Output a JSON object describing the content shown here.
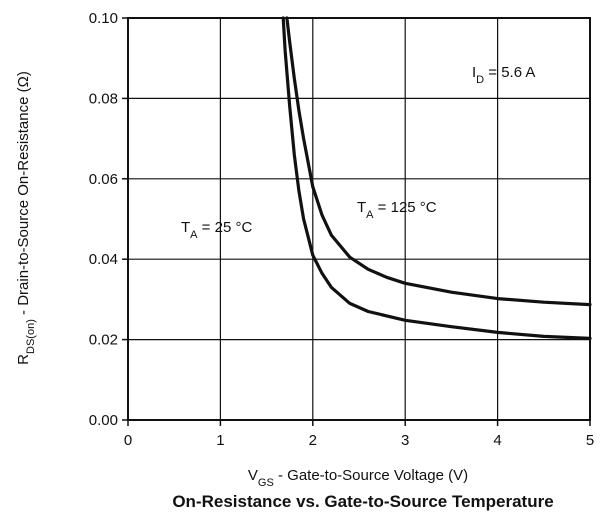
{
  "chart_data": {
    "type": "line",
    "title": "On-Resistance vs. Gate-to-Source Temperature",
    "xlabel": {
      "main": "V",
      "sub": "GS",
      "rest": " - Gate-to-Source Voltage (V)"
    },
    "ylabel": {
      "main": "R",
      "sub": "DS(on)",
      "rest": " - Drain-to-Source On-Resistance (Ω)"
    },
    "xlim": [
      0,
      5
    ],
    "ylim": [
      0.0,
      0.1
    ],
    "x_ticks": [
      "0",
      "1",
      "2",
      "3",
      "4",
      "5"
    ],
    "y_ticks": [
      "0.00",
      "0.02",
      "0.04",
      "0.06",
      "0.08",
      "0.10"
    ],
    "grid": true,
    "annotations": {
      "id": {
        "main": "I",
        "sub": "D",
        "rest": " = 5.6 A"
      },
      "t25": {
        "main": "T",
        "sub": "A",
        "rest": " = 25 °C"
      },
      "t125": {
        "main": "T",
        "sub": "A",
        "rest": " = 125 °C"
      }
    },
    "series": [
      {
        "curve": "t125",
        "x": [
          1.72,
          1.75,
          1.8,
          1.85,
          1.9,
          2.0,
          2.1,
          2.2,
          2.4,
          2.6,
          2.8,
          3.0,
          3.5,
          4.0,
          4.5,
          5.0
        ],
        "y": [
          0.1,
          0.094,
          0.085,
          0.077,
          0.07,
          0.058,
          0.051,
          0.046,
          0.0405,
          0.0375,
          0.0355,
          0.034,
          0.0318,
          0.0302,
          0.0293,
          0.0287
        ]
      },
      {
        "curve": "t25",
        "x": [
          1.68,
          1.7,
          1.75,
          1.8,
          1.85,
          1.9,
          2.0,
          2.1,
          2.2,
          2.4,
          2.6,
          3.0,
          3.5,
          4.0,
          4.5,
          5.0
        ],
        "y": [
          0.1,
          0.092,
          0.078,
          0.066,
          0.057,
          0.05,
          0.041,
          0.0365,
          0.033,
          0.029,
          0.027,
          0.0248,
          0.0232,
          0.0218,
          0.0208,
          0.0203
        ]
      }
    ]
  }
}
